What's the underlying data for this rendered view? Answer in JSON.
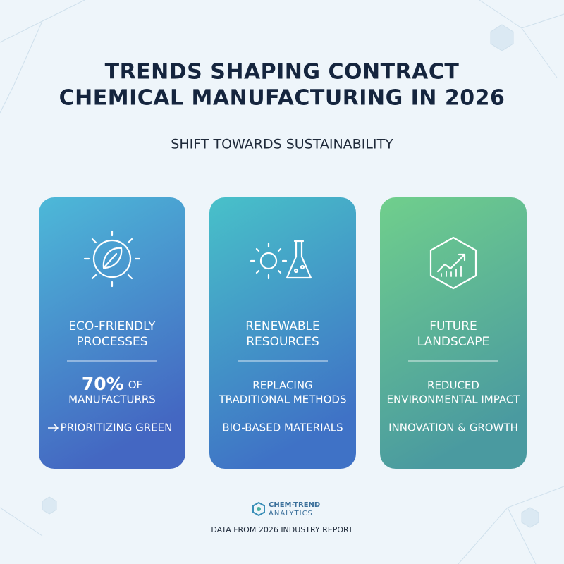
{
  "header": {
    "title": [
      "TRENDS SHAPING CONTRACT",
      "CHEMICAL MANUFACTURING IN 2026"
    ],
    "subtitle": "SHIFT TOWARDS SUSTAINABILITY"
  },
  "cards": [
    {
      "heading": [
        "ECO-FRIENDLY",
        "PROCESSES"
      ],
      "highlight": "70%",
      "highlight_suffix": "OF",
      "body": [
        "MANUFACTURRS"
      ],
      "note": "PRIORITIZING GREEN"
    },
    {
      "heading": [
        "RENEWABLE",
        "RESOURCES"
      ],
      "body": [
        "REPLACING",
        "TRADITIONAL METHODS"
      ],
      "note": "BIO-BASED MATERIALS"
    },
    {
      "heading": [
        "FUTURE",
        "LANDSCAPE"
      ],
      "body": [
        "REDUCED",
        "ENVIRONMENTAL IMPACT"
      ],
      "note": "INNOVATION & GROWTH"
    }
  ],
  "footer": {
    "brand": [
      "CHEM-TREND",
      "ANALYTICS"
    ],
    "source": "DATA FROM 2026 INDUSTRY REPORT"
  }
}
